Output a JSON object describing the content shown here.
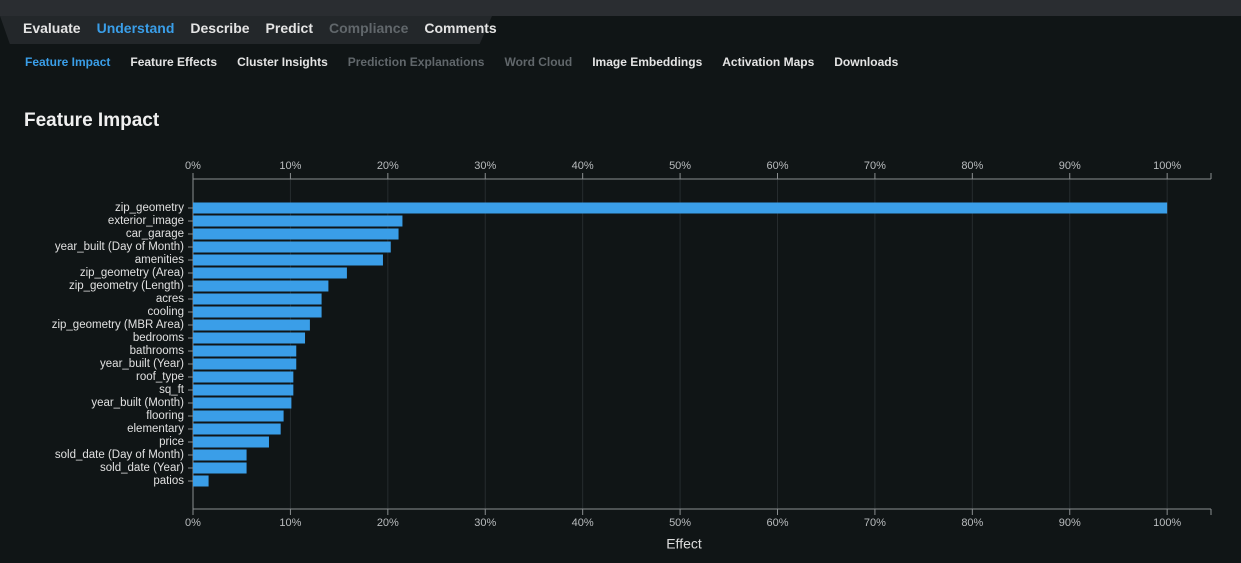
{
  "nav": {
    "tabs": [
      "Evaluate",
      "Understand",
      "Describe",
      "Predict",
      "Compliance",
      "Comments"
    ],
    "subtabs": [
      "Feature Impact",
      "Feature Effects",
      "Cluster Insights",
      "Prediction Explanations",
      "Word Cloud",
      "Image Embeddings",
      "Activation Maps",
      "Downloads"
    ]
  },
  "chart_data": {
    "type": "hbar",
    "title": "Feature Impact",
    "x_label": "Effect",
    "color": "#3a9ee8",
    "grid": true,
    "categories": [
      "zip_geometry",
      "exterior_image",
      "car_garage",
      "year_built (Day of Month)",
      "amenities",
      "zip_geometry (Area)",
      "zip_geometry (Length)",
      "acres",
      "cooling",
      "zip_geometry (MBR Area)",
      "bedrooms",
      "bathrooms",
      "year_built (Year)",
      "roof_type",
      "sq_ft",
      "year_built (Month)",
      "flooring",
      "elementary",
      "price",
      "sold_date (Day of Month)",
      "sold_date (Year)",
      "patios"
    ],
    "values": [
      100,
      21.5,
      21.1,
      20.3,
      19.5,
      15.8,
      13.9,
      13.2,
      13.2,
      12.0,
      11.5,
      10.6,
      10.6,
      10.3,
      10.3,
      10.1,
      9.3,
      9.0,
      7.8,
      5.5,
      5.5,
      1.6
    ],
    "xlim": [
      0,
      104.5
    ],
    "xticks": [
      {
        "value": 0,
        "label": "0%"
      },
      {
        "value": 10,
        "label": "10%"
      },
      {
        "value": 20,
        "label": "20%"
      },
      {
        "value": 30,
        "label": "30%"
      },
      {
        "value": 40,
        "label": "40%"
      },
      {
        "value": 50,
        "label": "50%"
      },
      {
        "value": 60,
        "label": "60%"
      },
      {
        "value": 70,
        "label": "70%"
      },
      {
        "value": 80,
        "label": "80%"
      },
      {
        "value": 90,
        "label": "90%"
      },
      {
        "value": 100,
        "label": "100%"
      }
    ]
  }
}
